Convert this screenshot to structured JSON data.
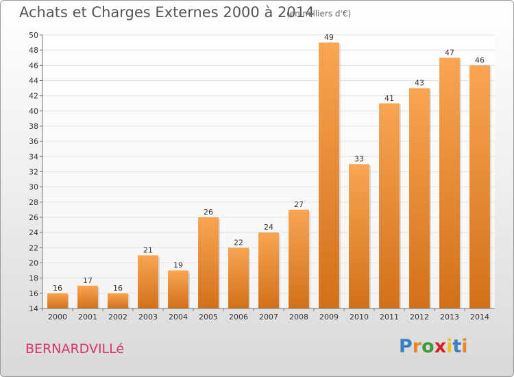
{
  "header": {
    "title": "Achats et Charges Externes 2000 à 2014",
    "subtitle": "(en milliers d'€)"
  },
  "footer": {
    "commune": "BERNARDVILLé",
    "logo_letters": [
      "P",
      "r",
      "o",
      "x",
      "i",
      "t",
      "i"
    ],
    "logo_colors": [
      "#3a7fc2",
      "#e8862a",
      "#3a9a3a",
      "#d62020",
      "#f0c020",
      "#3a7fc2",
      "#e8862a"
    ]
  },
  "colors": {
    "bar_light": "#f9a552",
    "bar_dark": "#d2701a",
    "grid": "#e3e3e3",
    "axis": "#777777"
  },
  "chart_data": {
    "type": "bar",
    "title": "Achats et Charges Externes 2000 à 2014",
    "subtitle": "(en milliers d'€)",
    "categories": [
      "2000",
      "2001",
      "2002",
      "2003",
      "2004",
      "2005",
      "2006",
      "2007",
      "2008",
      "2009",
      "2010",
      "2011",
      "2012",
      "2013",
      "2014"
    ],
    "values": [
      16,
      17,
      16,
      21,
      19,
      26,
      22,
      24,
      27,
      49,
      33,
      41,
      43,
      47,
      46
    ],
    "ylim": [
      14,
      50
    ],
    "yticks": [
      14,
      16,
      18,
      20,
      22,
      24,
      26,
      28,
      30,
      32,
      34,
      36,
      38,
      40,
      42,
      44,
      46,
      48,
      50
    ],
    "ytick_labels": [
      "14",
      "16",
      "18",
      "20",
      "22",
      "24",
      "26",
      "28",
      "30",
      "32",
      "34",
      "36",
      "38",
      "40",
      "42",
      "44",
      "46",
      "48",
      "50"
    ],
    "grid": true,
    "data_labels": true
  }
}
